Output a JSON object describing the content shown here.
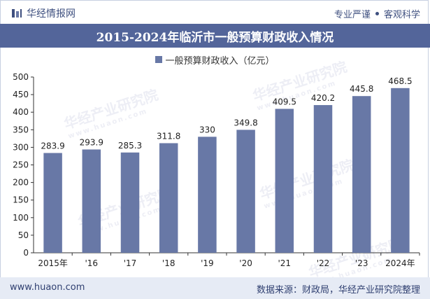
{
  "header": {
    "brand": "华经情报网",
    "tags": [
      "专业严谨",
      "客观科学"
    ]
  },
  "title": "2015-2024年临沂市一般预算财政收入情况",
  "watermark": {
    "text": "华经产业研究院",
    "url": "www.huaon.com"
  },
  "footer": {
    "url": "www.huaon.com",
    "source": "数据来源：财政局，华经产业研究院整理"
  },
  "colors": {
    "bar": "#6878a6",
    "title_bg": "#53659a",
    "footer_bg": "#e6ebf5"
  },
  "chart_data": {
    "type": "bar",
    "categories": [
      "2015年",
      "'16",
      "'17",
      "'18",
      "'19",
      "'20",
      "'21",
      "'22",
      "'23",
      "2024年"
    ],
    "series": [
      {
        "name": "一般预算财政收入（亿元）",
        "values": [
          283.9,
          293.9,
          285.3,
          311.8,
          330,
          349.8,
          409.5,
          420.2,
          445.8,
          468.5
        ]
      }
    ],
    "value_labels": [
      "283.9",
      "293.9",
      "285.3",
      "311.8",
      "330",
      "349.8",
      "409.5",
      "420.2",
      "445.8",
      "468.5"
    ],
    "yticks": [
      0,
      50,
      100,
      150,
      200,
      250,
      300,
      350,
      400,
      450,
      500
    ],
    "ylim": [
      0,
      500
    ],
    "grid": false,
    "legend_position": "top"
  }
}
